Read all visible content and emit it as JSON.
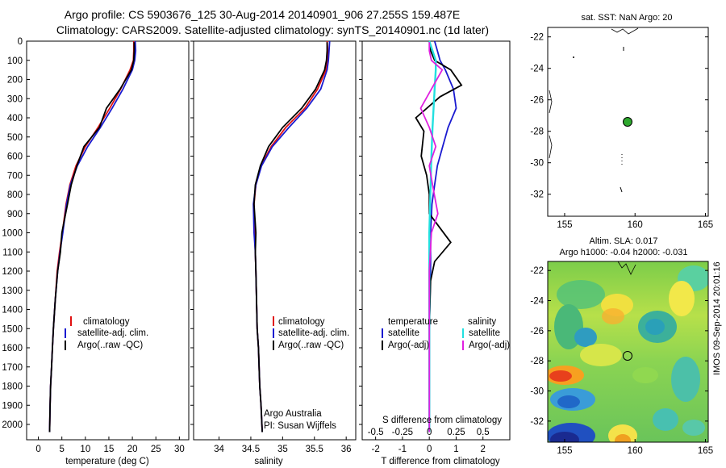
{
  "title_line1": "Argo profile: CS 5903676_125 30-Aug-2014 20140901_906 27.255S 159.487E",
  "title_line2": "Climatology: CARS2009. Satellite-adjusted climatology: synTS_20140901.nc (1d later)",
  "depth_ticks": [
    "0",
    "100",
    "200",
    "300",
    "400",
    "500",
    "600",
    "700",
    "800",
    "900",
    "1000",
    "1100",
    "1200",
    "1300",
    "1400",
    "1500",
    "1600",
    "1700",
    "1800",
    "1900",
    "2000"
  ],
  "panels": {
    "temperature": {
      "xlabel": "temperature (deg C)",
      "ticks": [
        "0",
        "5",
        "10",
        "15",
        "20",
        "25",
        "30"
      ],
      "legend": [
        "climatology",
        "satellite-adj. clim.",
        "Argo(..raw -QC)"
      ]
    },
    "salinity": {
      "xlabel": "salinity",
      "ticks": [
        "34",
        "34.5",
        "35",
        "35.5",
        "36"
      ],
      "legend": [
        "climatology",
        "satellite-adj. clim.",
        "Argo(..raw -QC)"
      ],
      "note_line1": "Argo Australia",
      "note_line2": "PI: Susan Wijffels"
    },
    "difference": {
      "xlabel": "T difference from climatology",
      "top_label": "S difference from climatology",
      "s_ticks": [
        "-0.5",
        "-0.25",
        "0",
        "0.25",
        "0.5"
      ],
      "t_ticks": [
        "-2",
        "-1",
        "0",
        "1",
        "2"
      ],
      "legend_temp_header": "temperature",
      "legend_sal_header": "salinity",
      "legend_temp": [
        "satellite",
        "Argo(-adj)"
      ],
      "legend_sal": [
        "satellite",
        "Argo(-adj)"
      ]
    },
    "map_sst": {
      "title": "sat. SST: NaN Argo: 20",
      "lat_ticks": [
        "-22",
        "-24",
        "-26",
        "-28",
        "-30",
        "-32"
      ],
      "lon_ticks": [
        "155",
        "160",
        "165"
      ]
    },
    "map_sla": {
      "title_line1": "Altim. SLA: 0.017",
      "title_line2": "Argo h1000: -0.04 h2000: -0.031",
      "lat_ticks": [
        "-22",
        "-24",
        "-26",
        "-28",
        "-30",
        "-32"
      ],
      "lon_ticks": [
        "155",
        "160",
        "165"
      ]
    }
  },
  "side_stamp": "IMOS 09-Sep-2014 20:01:16",
  "colors": {
    "climatology": "#e01010",
    "satellite_adj": "#1a1ad0",
    "argo": "#000000",
    "sal_satellite": "#22e0e0",
    "sal_argo": "#e020e0",
    "argo_marker": "#2ea82e"
  },
  "chart_data": [
    {
      "type": "line",
      "name": "temperature profile",
      "xlabel": "temperature (deg C)",
      "ylabel": "",
      "xlim": [
        -2.5,
        32
      ],
      "ylim": [
        2080,
        0
      ],
      "series": [
        {
          "name": "climatology",
          "x": [
            20.3,
            20.3,
            20.2,
            19.5,
            17.5,
            15.2,
            12.7,
            10.0,
            8.0,
            6.7,
            5.9,
            5.1,
            4.5,
            4.0,
            3.6,
            3.2,
            3.0,
            2.8,
            2.6,
            2.5,
            2.4
          ],
          "y": [
            0,
            50,
            100,
            150,
            250,
            350,
            450,
            550,
            650,
            750,
            850,
            1000,
            1100,
            1200,
            1350,
            1500,
            1600,
            1700,
            1800,
            1900,
            2040
          ]
        },
        {
          "name": "satellite-adj. clim.",
          "x": [
            20.6,
            20.7,
            20.5,
            20.0,
            18.0,
            15.7,
            13.2,
            10.5,
            8.3,
            6.8,
            6.0,
            5.2,
            4.6,
            4.1,
            3.6,
            3.2,
            3.0,
            2.8,
            2.6,
            2.5,
            2.4
          ],
          "y": [
            0,
            50,
            100,
            150,
            250,
            350,
            450,
            550,
            650,
            750,
            850,
            1000,
            1100,
            1200,
            1350,
            1500,
            1600,
            1700,
            1800,
            1900,
            2040
          ]
        },
        {
          "name": "Argo(..raw -QC)",
          "x": [
            20.4,
            20.4,
            20.3,
            19.8,
            17.4,
            14.5,
            13.0,
            9.7,
            8.2,
            7.0,
            6.2,
            5.0,
            4.7,
            4.1,
            3.6,
            3.2,
            3.0,
            2.8,
            2.6,
            2.5,
            2.4
          ],
          "y": [
            5,
            50,
            100,
            150,
            250,
            350,
            450,
            550,
            650,
            750,
            850,
            1000,
            1100,
            1200,
            1350,
            1500,
            1600,
            1700,
            1800,
            1900,
            2040
          ]
        }
      ]
    },
    {
      "type": "line",
      "name": "salinity profile",
      "xlabel": "salinity",
      "ylabel": "",
      "xlim": [
        33.6,
        36.15
      ],
      "ylim": [
        2080,
        0
      ],
      "series": [
        {
          "name": "climatology",
          "x": [
            35.7,
            35.71,
            35.7,
            35.68,
            35.55,
            35.35,
            35.05,
            34.82,
            34.66,
            34.58,
            34.55,
            34.56,
            34.57,
            34.58,
            34.59,
            34.6,
            34.62,
            34.63,
            34.64,
            34.66,
            34.68
          ],
          "y": [
            0,
            50,
            100,
            150,
            250,
            350,
            450,
            550,
            650,
            750,
            850,
            1000,
            1100,
            1200,
            1350,
            1500,
            1600,
            1700,
            1800,
            1900,
            2040
          ]
        },
        {
          "name": "satellite-adj. clim.",
          "x": [
            35.74,
            35.73,
            35.72,
            35.7,
            35.6,
            35.38,
            35.1,
            34.84,
            34.67,
            34.58,
            34.54,
            34.55,
            34.57,
            34.58,
            34.59,
            34.6,
            34.62,
            34.63,
            34.64,
            34.66,
            34.68
          ],
          "y": [
            0,
            50,
            100,
            150,
            250,
            350,
            450,
            550,
            650,
            750,
            850,
            1000,
            1100,
            1200,
            1350,
            1500,
            1600,
            1700,
            1800,
            1900,
            2040
          ]
        },
        {
          "name": "Argo(..raw -QC)",
          "x": [
            35.7,
            35.7,
            35.69,
            35.66,
            35.52,
            35.3,
            35.0,
            34.78,
            34.65,
            34.57,
            34.55,
            34.58,
            34.57,
            34.58,
            34.59,
            34.6,
            34.62,
            34.63,
            34.64,
            34.66,
            34.68
          ],
          "y": [
            5,
            50,
            100,
            150,
            250,
            350,
            450,
            550,
            650,
            750,
            850,
            1000,
            1100,
            1200,
            1350,
            1500,
            1600,
            1700,
            1800,
            1900,
            2040
          ]
        }
      ]
    },
    {
      "type": "line",
      "name": "difference from climatology",
      "xlabel": "T difference from climatology",
      "ylabel": "",
      "xlim": [
        -2.5,
        3.0
      ],
      "ylim": [
        2080,
        0
      ],
      "series": [
        {
          "name": "temperature satellite",
          "x": [
            0.2,
            0.3,
            0.4,
            0.6,
            0.9,
            1.0,
            0.7,
            0.5,
            0.3,
            0.2,
            0.1,
            0.05,
            0.05,
            0.0,
            0.0,
            0.0
          ],
          "y": [
            0,
            50,
            100,
            150,
            250,
            350,
            450,
            550,
            650,
            750,
            850,
            1000,
            1200,
            1500,
            1800,
            2040
          ]
        },
        {
          "name": "temperature Argo(-adj)",
          "x": [
            0.0,
            0.05,
            0.2,
            0.8,
            1.2,
            0.4,
            -0.5,
            -0.2,
            -0.3,
            -0.1,
            0.0,
            0.0,
            0.8,
            0.2,
            0.05,
            0.0,
            0.0,
            0.0
          ],
          "y": [
            5,
            50,
            100,
            150,
            230,
            290,
            400,
            470,
            600,
            700,
            800,
            900,
            1050,
            1150,
            1250,
            1500,
            1800,
            2040
          ]
        },
        {
          "name": "salinity satellite",
          "x": [
            0.0,
            0.03,
            0.06,
            0.06,
            0.05,
            0.04,
            0.03,
            0.02,
            0.01,
            0.0,
            0.0,
            0.0
          ],
          "y": [
            0,
            50,
            100,
            150,
            250,
            350,
            450,
            600,
            800,
            1000,
            1500,
            2040
          ]
        },
        {
          "name": "salinity Argo(-adj)",
          "x": [
            0.0,
            0.0,
            0.02,
            0.12,
            0.02,
            -0.08,
            0.0,
            0.06,
            0.0,
            0.03,
            0.08,
            0.02,
            0.0,
            0.0,
            0.0
          ],
          "y": [
            5,
            50,
            100,
            150,
            250,
            350,
            450,
            550,
            650,
            750,
            900,
            1000,
            1200,
            1500,
            2040
          ]
        }
      ]
    }
  ]
}
